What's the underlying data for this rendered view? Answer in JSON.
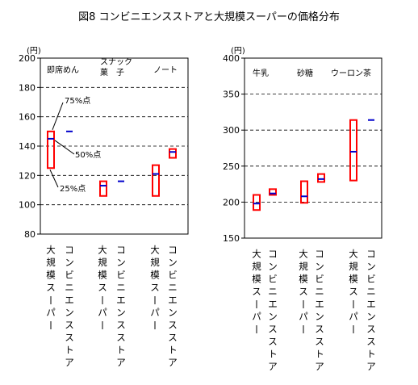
{
  "title": "図8 コンビニエンスストアと大規模スーパーの価格分布",
  "colors": {
    "box": "#ff0000",
    "median": "#0000cc",
    "grid": "#000000",
    "axis": "#000000"
  },
  "chart_data": [
    {
      "type": "box",
      "unit_label": "(円)",
      "ylim": [
        80,
        200
      ],
      "yticks": [
        "80",
        "100",
        "120",
        "140",
        "160",
        "180",
        "200"
      ],
      "grid": "dashed",
      "products": [
        "即席めん",
        "スナック菓　子",
        "ノート"
      ],
      "store_labels": [
        "大規模スーパー",
        "コンビニエンスストア"
      ],
      "series": [
        {
          "product": "即席めん",
          "store": "大規模スーパー",
          "p25": 125,
          "median": 145,
          "p75": 150
        },
        {
          "product": "即席めん",
          "store": "コンビニエンスストア",
          "p25": 150,
          "median": 150,
          "p75": 150
        },
        {
          "product": "スナック菓　子",
          "store": "大規模スーパー",
          "p25": 106,
          "median": 113,
          "p75": 116
        },
        {
          "product": "スナック菓　子",
          "store": "コンビニエンスストア",
          "p25": 116,
          "median": 116,
          "p75": 116
        },
        {
          "product": "ノート",
          "store": "大規模スーパー",
          "p25": 106,
          "median": 121,
          "p75": 127
        },
        {
          "product": "ノート",
          "store": "コンビニエンスストア",
          "p25": 132,
          "median": 136,
          "p75": 138
        }
      ],
      "annotations": [
        "75%点",
        "50%点",
        "25%点"
      ]
    },
    {
      "type": "box",
      "unit_label": "(円)",
      "ylim": [
        150,
        400
      ],
      "yticks": [
        "150",
        "200",
        "250",
        "300",
        "350",
        "400"
      ],
      "grid": "dashed",
      "products": [
        "牛乳",
        "砂糖",
        "ウーロン茶"
      ],
      "store_labels": [
        "大規模スーパー",
        "コンビニエンスストア"
      ],
      "series": [
        {
          "product": "牛乳",
          "store": "大規模スーパー",
          "p25": 189,
          "median": 198,
          "p75": 210
        },
        {
          "product": "牛乳",
          "store": "コンビニエンスストア",
          "p25": 210,
          "median": 212,
          "p75": 218
        },
        {
          "product": "砂糖",
          "store": "大規模スーパー",
          "p25": 199,
          "median": 208,
          "p75": 229
        },
        {
          "product": "砂糖",
          "store": "コンビニエンスストア",
          "p25": 228,
          "median": 232,
          "p75": 239
        },
        {
          "product": "ウーロン茶",
          "store": "大規模スーパー",
          "p25": 230,
          "median": 270,
          "p75": 314
        },
        {
          "product": "ウーロン茶",
          "store": "コンビニエンスストア",
          "p25": 314,
          "median": 314,
          "p75": 314
        }
      ],
      "annotations": []
    }
  ]
}
